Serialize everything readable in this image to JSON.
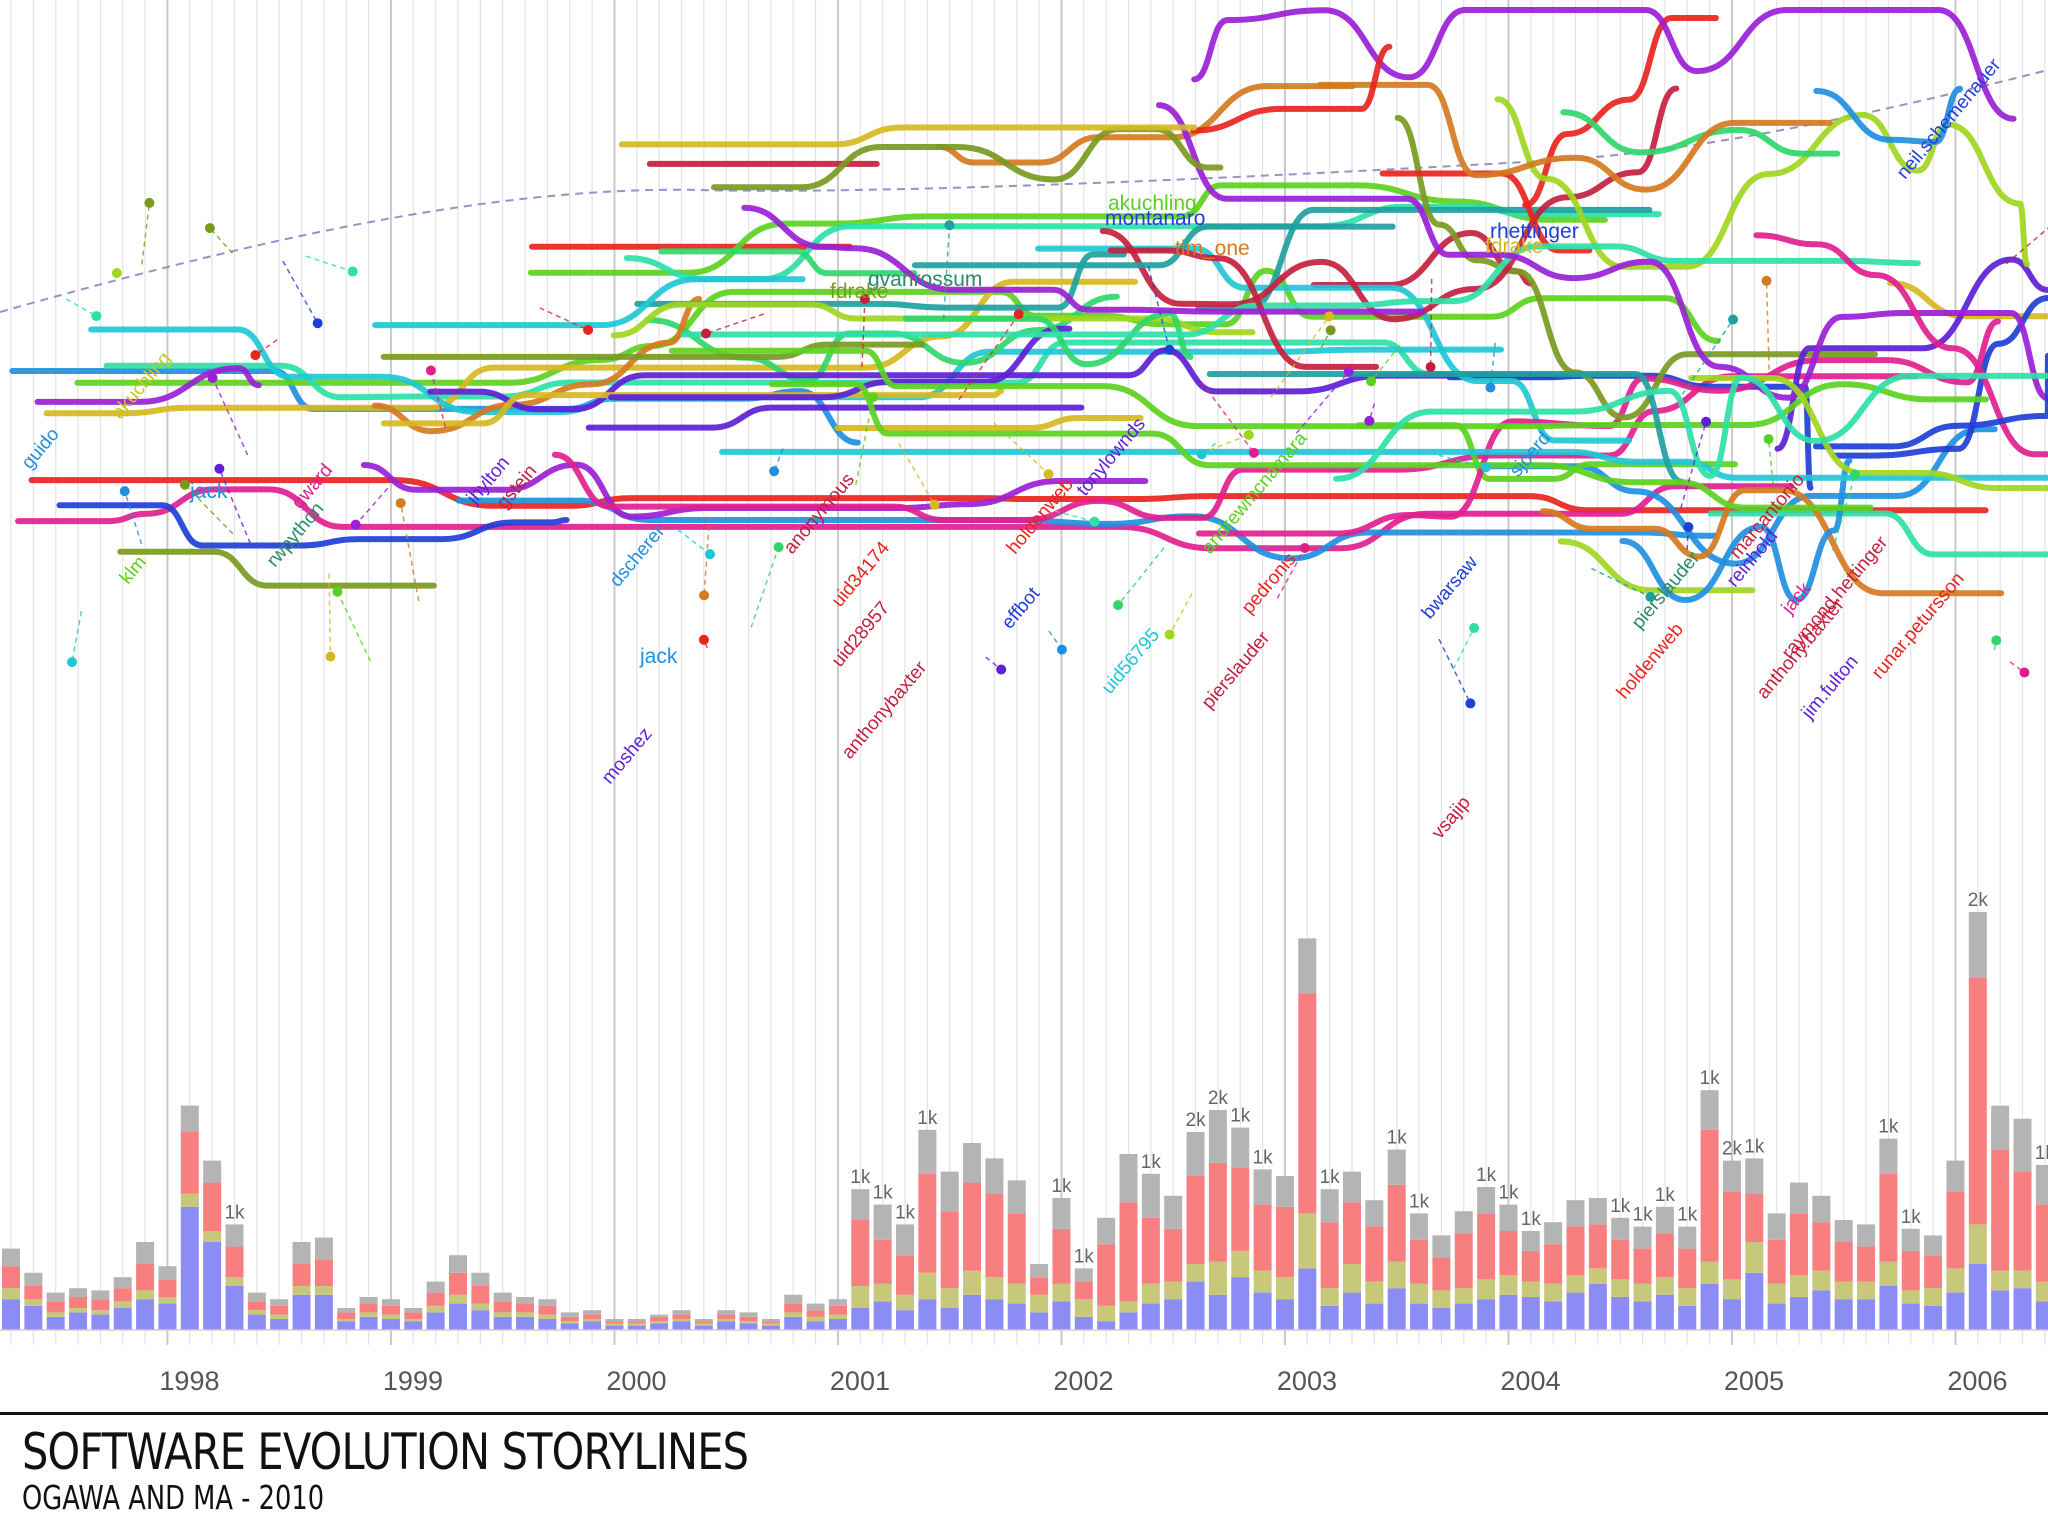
{
  "chart_data": [
    {
      "type": "line",
      "description_kind": "storyline",
      "x_range": [
        "1997-07",
        "2006-04"
      ],
      "colors": [
        "#e8241f",
        "#1f8fe0",
        "#5bd11f",
        "#2ee0a8",
        "#9b1fd6",
        "#d6b91f",
        "#1fc7d6",
        "#e01f8f",
        "#7a9a1f",
        "#1f3fd6",
        "#c41f3f",
        "#2fd66a",
        "#d67a1f",
        "#1fa0a0",
        "#5e1fd6",
        "#a0d61f"
      ],
      "story_labels": [
        {
          "text": "jack",
          "color": "#1f8fe0"
        },
        {
          "text": "jack",
          "color": "#1f8fe0"
        },
        {
          "text": "gvanrossum",
          "color": "#2a8a6a"
        },
        {
          "text": "fdrake",
          "color": "#7a9a1f"
        },
        {
          "text": "akuchling",
          "color": "#5bd11f"
        },
        {
          "text": "montanaro",
          "color": "#1f3fd6"
        },
        {
          "text": "tim_one",
          "color": "#d67a1f"
        },
        {
          "text": "rhettinger",
          "color": "#1f3fd6"
        },
        {
          "text": "fdrake",
          "color": "#d6b91f"
        }
      ],
      "actor_labels": [
        {
          "text": "akuchling",
          "color": "#c9c81f"
        },
        {
          "text": "guido",
          "color": "#1f8fe0"
        },
        {
          "text": "klm",
          "color": "#5bd11f"
        },
        {
          "text": "rwpython",
          "color": "#2a8a6a"
        },
        {
          "text": "gward",
          "color": "#e01f8f"
        },
        {
          "text": "jhylton",
          "color": "#5e1fd6"
        },
        {
          "text": "gstein",
          "color": "#c41f3f"
        },
        {
          "text": "moshez",
          "color": "#5e1fd6"
        },
        {
          "text": "dscherer",
          "color": "#1f8fe0"
        },
        {
          "text": "anonymous",
          "color": "#c41f3f"
        },
        {
          "text": "uid34174",
          "color": "#e8241f"
        },
        {
          "text": "uid28957",
          "color": "#c41f3f"
        },
        {
          "text": "anthonybaxter",
          "color": "#c41f3f"
        },
        {
          "text": "effbot",
          "color": "#1f3fd6"
        },
        {
          "text": "holdenweb",
          "color": "#e8241f"
        },
        {
          "text": "tonylownds",
          "color": "#5e1fd6"
        },
        {
          "text": "uid56795",
          "color": "#1fc7d6"
        },
        {
          "text": "andrewmcnamara",
          "color": "#5bd11f"
        },
        {
          "text": "pedronis",
          "color": "#e8241f"
        },
        {
          "text": "pierslauder",
          "color": "#c41f3f"
        },
        {
          "text": "bwarsaw",
          "color": "#1f3fd6"
        },
        {
          "text": "vsajip",
          "color": "#c41f3f"
        },
        {
          "text": "sjoerd",
          "color": "#1f8fe0"
        },
        {
          "text": "pierslauder",
          "color": "#2a8a6a"
        },
        {
          "text": "holdenweb",
          "color": "#e8241f"
        },
        {
          "text": "marcantonio",
          "color": "#c41f3f"
        },
        {
          "text": "reinhold",
          "color": "#5e1fd6"
        },
        {
          "text": "jack",
          "color": "#e01f8f"
        },
        {
          "text": "raymond.hettinger",
          "color": "#c41f3f"
        },
        {
          "text": "anthony.baxter",
          "color": "#c41f3f"
        },
        {
          "text": "jim.fulton",
          "color": "#5e1fd6"
        },
        {
          "text": "runar.petursson",
          "color": "#e8241f"
        },
        {
          "text": "neil.schemenauer",
          "color": "#1f3fd6"
        }
      ]
    },
    {
      "type": "bar",
      "stacked": true,
      "x_axis": {
        "tick_labels": [
          "1998",
          "1999",
          "2000",
          "2001",
          "2002",
          "2003",
          "2004",
          "2005",
          "2006"
        ],
        "ticks_at_bar_index": [
          7,
          17,
          27,
          37,
          47,
          57,
          67,
          77,
          87
        ]
      },
      "series": [
        {
          "color": "#8c8cf5",
          "values": [
            14,
            11,
            6,
            8,
            7,
            10,
            14,
            12,
            56,
            40,
            20,
            7,
            5,
            16,
            16,
            4,
            6,
            5,
            4,
            8,
            12,
            9,
            6,
            6,
            5,
            3,
            4,
            2,
            2,
            3,
            4,
            2,
            4,
            3,
            2,
            6,
            4,
            5,
            10,
            13,
            9,
            14,
            10,
            16,
            14,
            12,
            8,
            13,
            6,
            4,
            8,
            12,
            14,
            22,
            16,
            24,
            17,
            14,
            28,
            11,
            17,
            12,
            19,
            12,
            10,
            12,
            14,
            16,
            15,
            13,
            17,
            21,
            15,
            13,
            16,
            11,
            21,
            14,
            26,
            12,
            15,
            18,
            14,
            14,
            20,
            12,
            11,
            17,
            30,
            18,
            19,
            13,
            9,
            12
          ]
        },
        {
          "color": "#c8c87a",
          "values": [
            5,
            3,
            2,
            2,
            2,
            3,
            4,
            3,
            6,
            5,
            4,
            2,
            2,
            4,
            4,
            1,
            2,
            2,
            1,
            3,
            4,
            3,
            2,
            2,
            2,
            1,
            1,
            1,
            1,
            1,
            1,
            1,
            1,
            1,
            1,
            2,
            2,
            2,
            10,
            8,
            7,
            12,
            9,
            11,
            10,
            9,
            8,
            8,
            8,
            7,
            5,
            9,
            8,
            8,
            15,
            12,
            10,
            10,
            25,
            8,
            13,
            10,
            12,
            9,
            8,
            7,
            9,
            9,
            7,
            8,
            8,
            7,
            8,
            8,
            8,
            8,
            10,
            9,
            14,
            9,
            10,
            9,
            8,
            8,
            11,
            6,
            8,
            11,
            18,
            9,
            8,
            9,
            6,
            9
          ]
        },
        {
          "color": "#f77f7f",
          "values": [
            10,
            6,
            5,
            5,
            5,
            6,
            12,
            8,
            28,
            22,
            14,
            4,
            4,
            10,
            12,
            3,
            4,
            4,
            3,
            6,
            10,
            8,
            5,
            4,
            4,
            2,
            2,
            1,
            1,
            2,
            2,
            1,
            2,
            2,
            1,
            4,
            3,
            4,
            30,
            20,
            18,
            45,
            35,
            40,
            38,
            32,
            8,
            25,
            8,
            28,
            45,
            30,
            24,
            40,
            45,
            38,
            30,
            32,
            100,
            30,
            28,
            25,
            35,
            20,
            15,
            25,
            30,
            20,
            14,
            18,
            22,
            20,
            18,
            16,
            20,
            18,
            60,
            40,
            22,
            20,
            28,
            22,
            18,
            16,
            40,
            18,
            15,
            35,
            112,
            55,
            45,
            35,
            40,
            30
          ]
        },
        {
          "color": "#b4b4b4",
          "values": [
            8,
            6,
            4,
            4,
            4,
            5,
            10,
            6,
            12,
            10,
            10,
            4,
            3,
            10,
            10,
            2,
            3,
            3,
            2,
            5,
            8,
            6,
            4,
            3,
            3,
            2,
            2,
            1,
            1,
            1,
            2,
            1,
            2,
            2,
            1,
            4,
            3,
            3,
            14,
            16,
            14,
            20,
            18,
            18,
            16,
            15,
            6,
            14,
            6,
            12,
            22,
            20,
            15,
            20,
            24,
            18,
            16,
            14,
            25,
            15,
            14,
            12,
            16,
            12,
            10,
            10,
            12,
            12,
            9,
            10,
            12,
            12,
            10,
            10,
            12,
            10,
            18,
            14,
            16,
            12,
            14,
            12,
            10,
            10,
            16,
            10,
            9,
            14,
            30,
            20,
            24,
            18,
            16,
            14
          ]
        }
      ],
      "data_labels": [
        {
          "index": 10,
          "text": "1k"
        },
        {
          "index": 38,
          "text": "1k"
        },
        {
          "index": 39,
          "text": "1k"
        },
        {
          "index": 40,
          "text": "1k"
        },
        {
          "index": 41,
          "text": "1k"
        },
        {
          "index": 47,
          "text": "1k"
        },
        {
          "index": 48,
          "text": "1k"
        },
        {
          "index": 51,
          "text": "1k"
        },
        {
          "index": 53,
          "text": "2k"
        },
        {
          "index": 54,
          "text": "2k"
        },
        {
          "index": 55,
          "text": "1k"
        },
        {
          "index": 56,
          "text": "1k"
        },
        {
          "index": 59,
          "text": "1k"
        },
        {
          "index": 62,
          "text": "1k"
        },
        {
          "index": 63,
          "text": "1k"
        },
        {
          "index": 66,
          "text": "1k"
        },
        {
          "index": 67,
          "text": "1k"
        },
        {
          "index": 68,
          "text": "1k"
        },
        {
          "index": 72,
          "text": "1k"
        },
        {
          "index": 73,
          "text": "1k"
        },
        {
          "index": 74,
          "text": "1k"
        },
        {
          "index": 75,
          "text": "1k"
        },
        {
          "index": 76,
          "text": "1k"
        },
        {
          "index": 77,
          "text": "2k"
        },
        {
          "index": 78,
          "text": "1k"
        },
        {
          "index": 84,
          "text": "1k"
        },
        {
          "index": 85,
          "text": "1k"
        },
        {
          "index": 88,
          "text": "2k"
        },
        {
          "index": 91,
          "text": "1k"
        },
        {
          "index": 92,
          "text": "1k"
        },
        {
          "index": 93,
          "text": "1k"
        }
      ]
    }
  ],
  "caption": {
    "title": "SOFTWARE EVOLUTION STORYLINES",
    "subtitle": "OGAWA AND MA - 2010"
  }
}
